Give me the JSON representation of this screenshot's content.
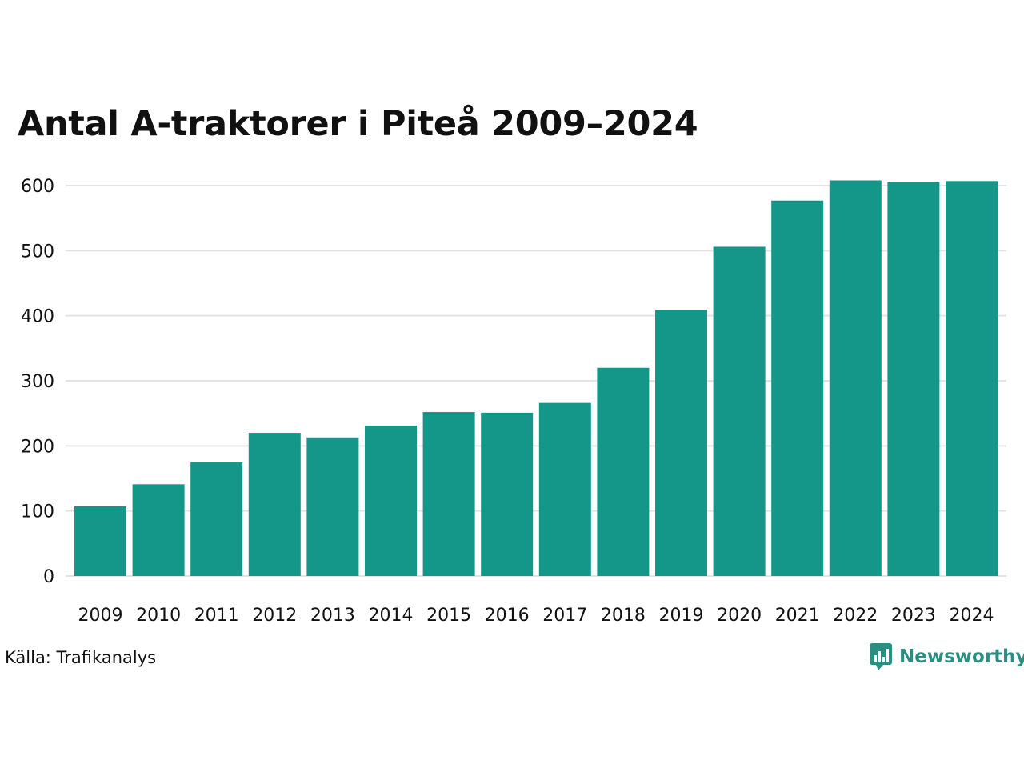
{
  "colors": {
    "bar": "#149688",
    "grid": "#e3e3e3",
    "text": "#111111",
    "brand": "#2a8f80"
  },
  "chart_data": {
    "type": "bar",
    "title": "Antal A-traktorer i Piteå 2009–2024",
    "categories": [
      "2009",
      "2010",
      "2011",
      "2012",
      "2013",
      "2014",
      "2015",
      "2016",
      "2017",
      "2018",
      "2019",
      "2020",
      "2021",
      "2022",
      "2023",
      "2024"
    ],
    "values": [
      107,
      141,
      175,
      220,
      213,
      231,
      252,
      251,
      266,
      320,
      409,
      506,
      577,
      608,
      605,
      607
    ],
    "y_ticks": [
      "0",
      "100",
      "200",
      "300",
      "400",
      "500",
      "600"
    ],
    "ylim": [
      0,
      640
    ],
    "grid": true,
    "xlabel": "",
    "ylabel": ""
  },
  "footer": {
    "source": "Källa: Trafikanalys",
    "brand": "Newsworthy",
    "brand_icon": "chart-logo-icon"
  }
}
